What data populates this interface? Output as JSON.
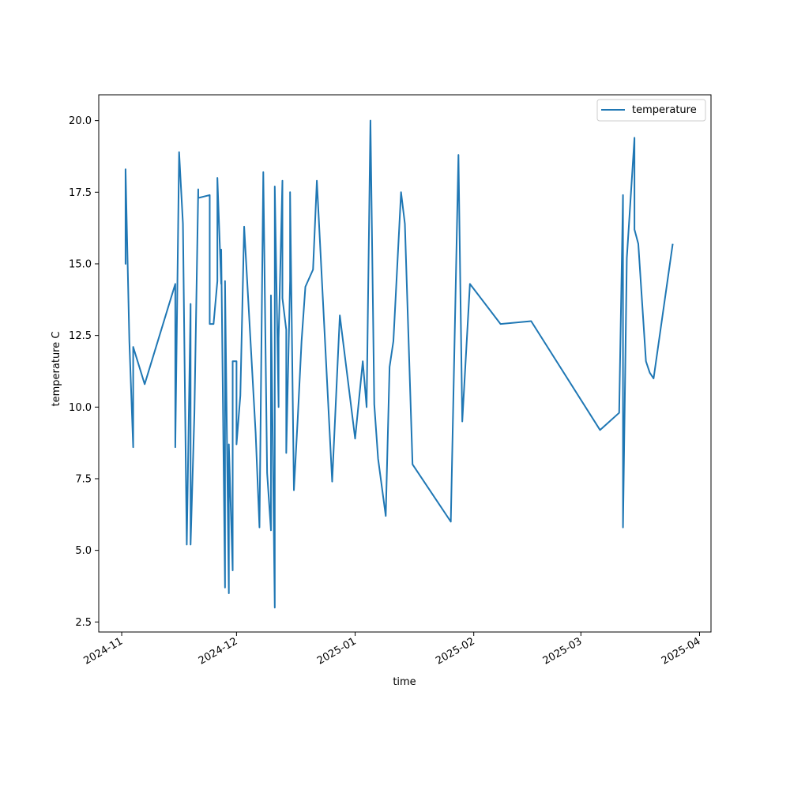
{
  "chart_data": {
    "type": "line",
    "xlabel": "time",
    "ylabel": "temperature C",
    "x_ticks": [
      "2024-11",
      "2024-12",
      "2025-01",
      "2025-02",
      "2025-03",
      "2025-04"
    ],
    "y_ticks": [
      "2.5",
      "5.0",
      "7.5",
      "10.0",
      "12.5",
      "15.0",
      "17.5",
      "20.0"
    ],
    "xlim": [
      "2024-10-26",
      "2025-04-04"
    ],
    "ylim": [
      2.15,
      20.9
    ],
    "grid": false,
    "legend_position": "top-right",
    "series": [
      {
        "name": "temperature",
        "color": "#1f77b4",
        "x": [
          "2024-11-02",
          "2024-11-02",
          "2024-11-02",
          "2024-11-03",
          "2024-11-04",
          "2024-11-04",
          "2024-11-07",
          "2024-11-15",
          "2024-11-15",
          "2024-11-16",
          "2024-11-17",
          "2024-11-18",
          "2024-11-19",
          "2024-11-19",
          "2024-11-20",
          "2024-11-21",
          "2024-11-21",
          "2024-11-24",
          "2024-11-24",
          "2024-11-25",
          "2024-11-26",
          "2024-11-26",
          "2024-11-27",
          "2024-11-27",
          "2024-11-28",
          "2024-11-28",
          "2024-11-29",
          "2024-11-29",
          "2024-11-30",
          "2024-11-30",
          "2024-12-01",
          "2024-12-01",
          "2024-12-02",
          "2024-12-03",
          "2024-12-06",
          "2024-12-07",
          "2024-12-08",
          "2024-12-09",
          "2024-12-10",
          "2024-12-10",
          "2024-12-11",
          "2024-12-11",
          "2024-12-12",
          "2024-12-12",
          "2024-12-13",
          "2024-12-13",
          "2024-12-14",
          "2024-12-14",
          "2024-12-15",
          "2024-12-15",
          "2024-12-16",
          "2024-12-17",
          "2024-12-18",
          "2024-12-19",
          "2024-12-21",
          "2024-12-22",
          "2024-12-26",
          "2024-12-28",
          "2025-01-01",
          "2025-01-03",
          "2025-01-04",
          "2025-01-05",
          "2025-01-06",
          "2025-01-07",
          "2025-01-09",
          "2025-01-10",
          "2025-01-11",
          "2025-01-13",
          "2025-01-14",
          "2025-01-16",
          "2025-01-26",
          "2025-01-28",
          "2025-01-29",
          "2025-01-31",
          "2025-02-08",
          "2025-02-16",
          "2025-03-06",
          "2025-03-11",
          "2025-03-12",
          "2025-03-12",
          "2025-03-13",
          "2025-03-15",
          "2025-03-15",
          "2025-03-16",
          "2025-03-18",
          "2025-03-19",
          "2025-03-20",
          "2025-03-25"
        ],
        "y": [
          15.6,
          15.0,
          18.3,
          12.3,
          8.6,
          12.1,
          10.8,
          14.3,
          8.6,
          18.9,
          16.4,
          5.2,
          13.6,
          5.2,
          9.8,
          17.6,
          17.3,
          17.4,
          12.9,
          12.9,
          14.4,
          18.0,
          14.3,
          15.5,
          3.7,
          14.4,
          3.5,
          8.7,
          4.3,
          11.6,
          11.6,
          8.7,
          10.4,
          16.3,
          9.1,
          5.8,
          18.2,
          7.7,
          5.7,
          13.9,
          3.0,
          17.7,
          10.0,
          12.4,
          17.9,
          13.8,
          12.7,
          8.4,
          14.4,
          17.5,
          7.1,
          9.6,
          12.3,
          14.2,
          14.8,
          17.9,
          7.4,
          13.2,
          8.9,
          11.6,
          10.0,
          20.0,
          10.1,
          8.2,
          6.2,
          11.4,
          12.3,
          17.5,
          16.4,
          8.0,
          6.0,
          18.8,
          9.5,
          14.3,
          12.9,
          13.0,
          9.2,
          9.8,
          17.4,
          5.8,
          15.2,
          19.4,
          16.2,
          15.7,
          11.6,
          11.2,
          11.0,
          15.7
        ]
      }
    ]
  }
}
